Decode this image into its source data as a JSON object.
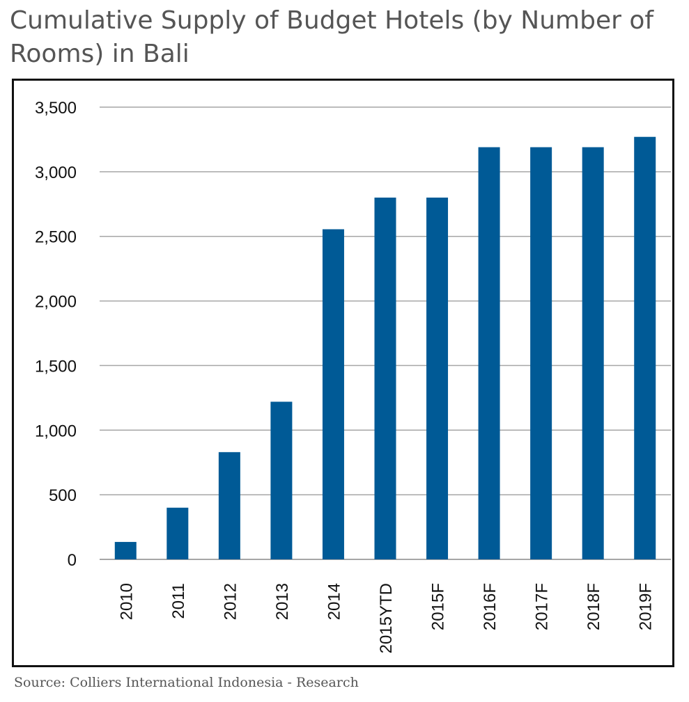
{
  "chart_data": {
    "type": "bar",
    "title": "Cumulative Supply of Budget Hotels (by Number of Rooms) in Bali",
    "categories": [
      "2010",
      "2011",
      "2012",
      "2013",
      "2014",
      "2015YTD",
      "2015F",
      "2016F",
      "2017F",
      "2018F",
      "2019F"
    ],
    "values": [
      135,
      400,
      830,
      1220,
      2555,
      2800,
      2800,
      3190,
      3190,
      3190,
      3270
    ],
    "ylim": [
      0,
      3500
    ],
    "yticks": [
      0,
      500,
      1000,
      1500,
      2000,
      2500,
      3000,
      3500
    ],
    "ytick_labels": [
      "0",
      "500",
      "1,000",
      "1,500",
      "2,000",
      "2,500",
      "3,000",
      "3,500"
    ],
    "grid": true,
    "xlabel": "",
    "ylabel": "",
    "bar_color": "#005a96",
    "grid_color": "#a6a6a6"
  },
  "source": "Source: Colliers International Indonesia - Research"
}
